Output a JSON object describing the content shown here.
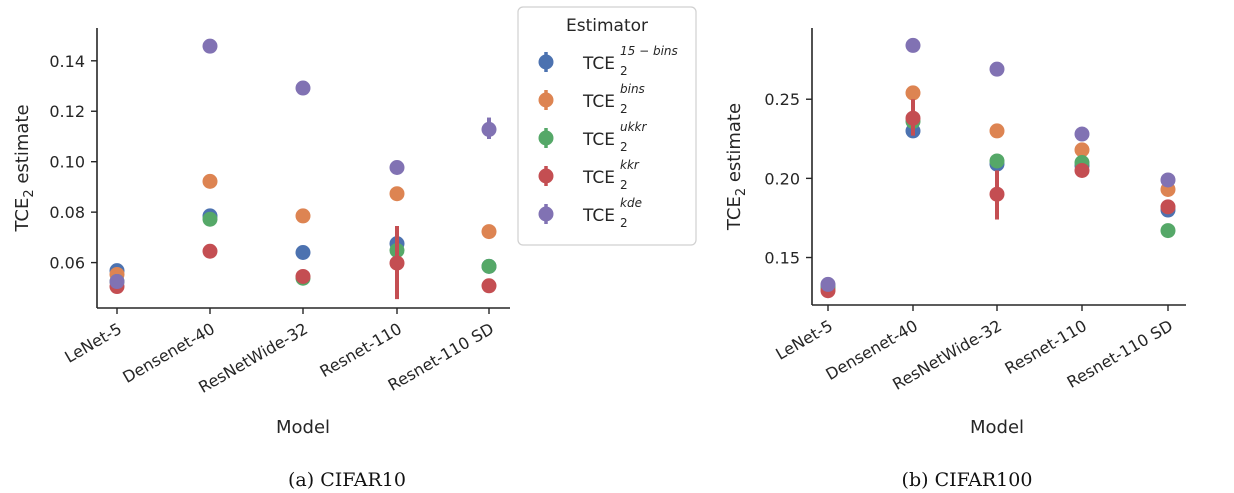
{
  "captions": [
    "(a) CIFAR10",
    "(b) CIFAR100"
  ],
  "legend": {
    "title": "Estimator",
    "entries": [
      {
        "base": "TCE",
        "sub": "2",
        "sup": "15 − bins"
      },
      {
        "base": "TCE",
        "sub": "2",
        "sup": "bins"
      },
      {
        "base": "TCE",
        "sub": "2",
        "sup": "ukkr"
      },
      {
        "base": "TCE",
        "sub": "2",
        "sup": "kkr"
      },
      {
        "base": "TCE",
        "sub": "2",
        "sup": "kde"
      }
    ]
  },
  "colors": [
    "#4c72b0",
    "#dd8452",
    "#55a868",
    "#c44e52",
    "#8172b3"
  ],
  "chart_data": [
    {
      "type": "scatter",
      "xlabel": "Model",
      "ylabel_base": "TCE",
      "ylabel_sub": "2",
      "ylabel_rest": " estimate",
      "categories": [
        "LeNet-5",
        "Densenet-40",
        "ResNetWide-32",
        "Resnet-110",
        "Resnet-110 SD"
      ],
      "ylim": [
        0.042,
        0.153
      ],
      "yticks": [
        0.06,
        0.08,
        0.1,
        0.12,
        0.14
      ],
      "yticklabels": [
        "0.06",
        "0.08",
        "0.10",
        "0.12",
        "0.14"
      ],
      "series": [
        {
          "name": "TCE_2^{15-bins}",
          "values": [
            0.0568,
            0.0785,
            0.064,
            0.0675,
            0.0585
          ],
          "err_lo": [
            0.0558,
            0.077,
            0.063,
            0.066,
            0.0575
          ],
          "err_hi": [
            0.0578,
            0.08,
            0.065,
            0.069,
            0.0595
          ]
        },
        {
          "name": "TCE_2^{bins}",
          "values": [
            0.0553,
            0.0922,
            0.0785,
            0.0873,
            0.0723
          ],
          "err_lo": [
            0.0543,
            0.091,
            0.076,
            0.086,
            0.0713
          ],
          "err_hi": [
            0.0563,
            0.0934,
            0.081,
            0.0886,
            0.0733
          ]
        },
        {
          "name": "TCE_2^{ukkr}",
          "values": [
            0.0525,
            0.0772,
            0.0538,
            0.0648,
            0.0585
          ],
          "err_lo": [
            0.0515,
            0.076,
            0.0528,
            0.0635,
            0.0575
          ],
          "err_hi": [
            0.0535,
            0.0784,
            0.0548,
            0.066,
            0.0595
          ]
        },
        {
          "name": "TCE_2^{kkr}",
          "values": [
            0.0505,
            0.0645,
            0.0545,
            0.0598,
            0.0508
          ],
          "err_lo": [
            0.0495,
            0.0635,
            0.0535,
            0.0455,
            0.0498
          ],
          "err_hi": [
            0.0515,
            0.0655,
            0.0555,
            0.0745,
            0.0518
          ]
        },
        {
          "name": "TCE_2^{kde}",
          "values": [
            0.0525,
            0.1458,
            0.1292,
            0.0977,
            0.1128
          ],
          "err_lo": [
            0.0515,
            0.1448,
            0.1282,
            0.0967,
            0.109
          ],
          "err_hi": [
            0.0535,
            0.1468,
            0.1302,
            0.0987,
            0.1175
          ]
        }
      ]
    },
    {
      "type": "scatter",
      "xlabel": "Model",
      "ylabel_base": "TCE",
      "ylabel_sub": "2",
      "ylabel_rest": " estimate",
      "categories": [
        "LeNet-5",
        "Densenet-40",
        "ResNetWide-32",
        "Resnet-110",
        "Resnet-110 SD"
      ],
      "ylim": [
        0.12,
        0.295
      ],
      "yticks": [
        0.15,
        0.2,
        0.25
      ],
      "yticklabels": [
        "0.15",
        "0.20",
        "0.25"
      ],
      "series": [
        {
          "name": "TCE_2^{15-bins}",
          "values": [
            0.132,
            0.23,
            0.209,
            0.208,
            0.18
          ],
          "err_lo": [
            0.13,
            0.227,
            0.206,
            0.205,
            0.177
          ],
          "err_hi": [
            0.134,
            0.233,
            0.212,
            0.211,
            0.183
          ]
        },
        {
          "name": "TCE_2^{bins}",
          "values": [
            0.131,
            0.254,
            0.23,
            0.218,
            0.193
          ],
          "err_lo": [
            0.129,
            0.251,
            0.227,
            0.215,
            0.19
          ],
          "err_hi": [
            0.133,
            0.257,
            0.233,
            0.221,
            0.196
          ]
        },
        {
          "name": "TCE_2^{ukkr}",
          "values": [
            0.131,
            0.236,
            0.211,
            0.21,
            0.167
          ],
          "err_lo": [
            0.129,
            0.233,
            0.208,
            0.207,
            0.164
          ],
          "err_hi": [
            0.133,
            0.239,
            0.214,
            0.213,
            0.17
          ]
        },
        {
          "name": "TCE_2^{kkr}",
          "values": [
            0.129,
            0.238,
            0.19,
            0.205,
            0.182
          ],
          "err_lo": [
            0.127,
            0.227,
            0.174,
            0.202,
            0.179
          ],
          "err_hi": [
            0.131,
            0.25,
            0.205,
            0.208,
            0.185
          ]
        },
        {
          "name": "TCE_2^{kde}",
          "values": [
            0.133,
            0.284,
            0.269,
            0.228,
            0.199
          ],
          "err_lo": [
            0.131,
            0.281,
            0.266,
            0.225,
            0.196
          ],
          "err_hi": [
            0.135,
            0.287,
            0.272,
            0.231,
            0.202
          ]
        }
      ]
    }
  ]
}
